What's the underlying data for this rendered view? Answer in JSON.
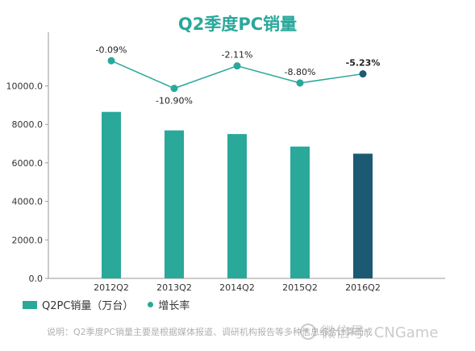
{
  "chart_data": {
    "type": "bar",
    "title": "Q2季度PC销量",
    "categories": [
      "2012Q2",
      "2013Q2",
      "2014Q2",
      "2015Q2",
      "2016Q2"
    ],
    "series": [
      {
        "name": "Q2PC销量（万台）",
        "type": "bar",
        "values": [
          8650,
          7690,
          7500,
          6850,
          6480
        ],
        "colors": [
          "#2aa89a",
          "#2aa89a",
          "#2aa89a",
          "#2aa89a",
          "#1c5a73"
        ]
      },
      {
        "name": "增长率",
        "type": "line",
        "values": [
          -0.09,
          -10.9,
          -2.11,
          -8.8,
          -5.23
        ],
        "labels": [
          "-0.09%",
          "-10.90%",
          "-2.11%",
          "-8.80%",
          "-5.23%"
        ],
        "colors": [
          "#2aa89a",
          "#2aa89a",
          "#2aa89a",
          "#2aa89a",
          "#1c5a73"
        ]
      }
    ],
    "yticks": [
      "0.0",
      "2000.0",
      "4000.0",
      "6000.0",
      "8000.0",
      "10000.0"
    ],
    "ylim": [
      0,
      12000
    ],
    "legend_position": "bottom-left"
  },
  "footnote": "说明：Q2季度PC销量主要是根据媒体报道、调研机构报告等多种信息综合计算而成",
  "watermark": "微信号: CNGame",
  "colors": {
    "accent": "#2aa89a",
    "highlight": "#1c5a73"
  }
}
